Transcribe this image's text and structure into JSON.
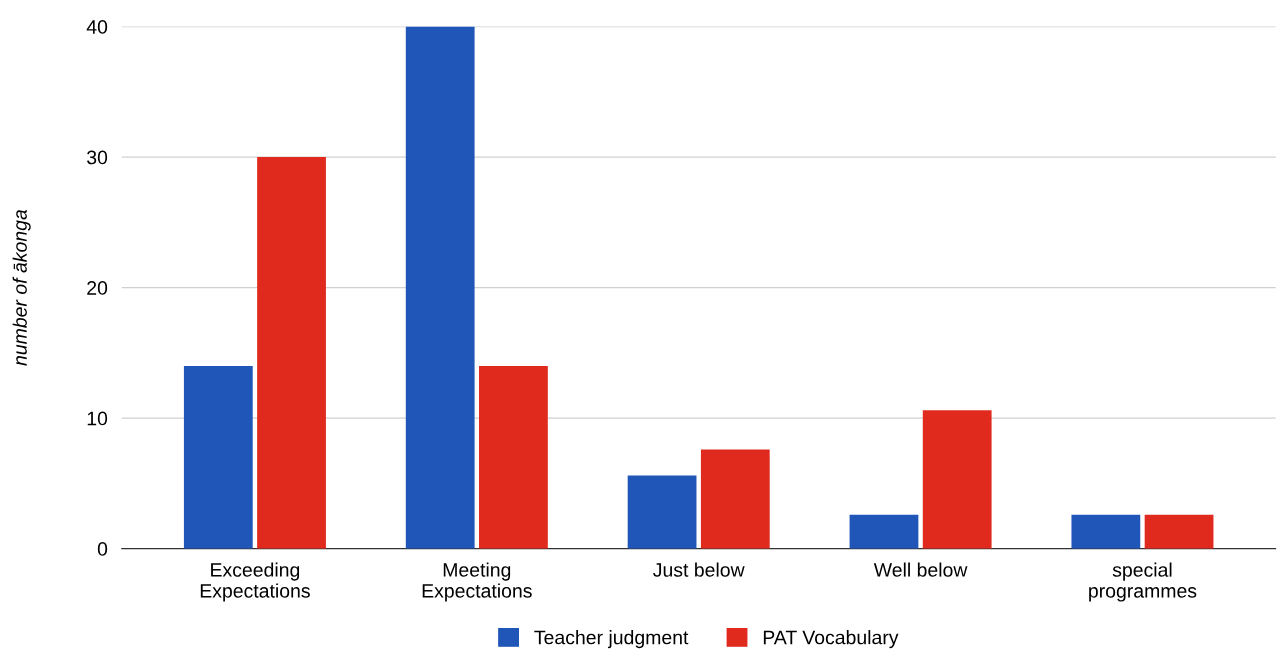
{
  "chart_data": {
    "type": "bar",
    "ylabel": "number of ākonga",
    "categories": [
      "Exceeding\nExpectations",
      "Meeting\nExpectations",
      "Just below",
      "Well below",
      "special\nprogrammes"
    ],
    "series": [
      {
        "name": "Teacher judgment",
        "color": "#1f56b8",
        "values": [
          14,
          40,
          5.6,
          2.6,
          2.6
        ]
      },
      {
        "name": "PAT Vocabulary",
        "color": "#e02a1d",
        "values": [
          30,
          14,
          7.6,
          10.6,
          2.6
        ]
      }
    ],
    "ylim": [
      0,
      40
    ],
    "yticks": [
      0,
      10,
      20,
      30,
      40
    ],
    "grid": "y",
    "legend": "bottom"
  }
}
